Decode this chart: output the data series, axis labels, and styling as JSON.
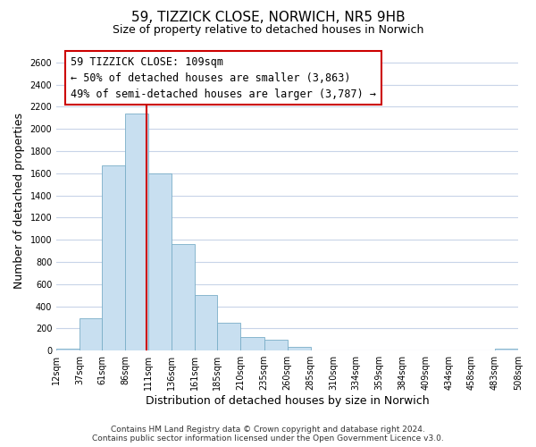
{
  "title": "59, TIZZICK CLOSE, NORWICH, NR5 9HB",
  "subtitle": "Size of property relative to detached houses in Norwich",
  "xlabel": "Distribution of detached houses by size in Norwich",
  "ylabel": "Number of detached properties",
  "bar_color": "#c8dff0",
  "bar_edge_color": "#7aaec8",
  "annotation_line_color": "#cc0000",
  "annotation_box_edge_color": "#cc0000",
  "annotation_text_line1": "59 TIZZICK CLOSE: 109sqm",
  "annotation_text_line2": "← 50% of detached houses are smaller (3,863)",
  "annotation_text_line3": "49% of semi-detached houses are larger (3,787) →",
  "property_sqm": 109,
  "vline_x": 109,
  "bin_edges": [
    12,
    37,
    61,
    86,
    111,
    136,
    161,
    185,
    210,
    235,
    260,
    285,
    310,
    334,
    359,
    384,
    409,
    434,
    458,
    483,
    508
  ],
  "bin_heights": [
    20,
    295,
    1670,
    2140,
    1595,
    965,
    505,
    250,
    120,
    95,
    30,
    5,
    0,
    0,
    0,
    0,
    0,
    0,
    0,
    20
  ],
  "xlim": [
    12,
    508
  ],
  "ylim": [
    0,
    2700
  ],
  "yticks": [
    0,
    200,
    400,
    600,
    800,
    1000,
    1200,
    1400,
    1600,
    1800,
    2000,
    2200,
    2400,
    2600
  ],
  "xtick_labels": [
    "12sqm",
    "37sqm",
    "61sqm",
    "86sqm",
    "111sqm",
    "136sqm",
    "161sqm",
    "185sqm",
    "210sqm",
    "235sqm",
    "260sqm",
    "285sqm",
    "310sqm",
    "334sqm",
    "359sqm",
    "384sqm",
    "409sqm",
    "434sqm",
    "458sqm",
    "483sqm",
    "508sqm"
  ],
  "footer_line1": "Contains HM Land Registry data © Crown copyright and database right 2024.",
  "footer_line2": "Contains public sector information licensed under the Open Government Licence v3.0.",
  "background_color": "#ffffff",
  "grid_color": "#c8d4e8",
  "title_fontsize": 11,
  "subtitle_fontsize": 9,
  "axis_label_fontsize": 9,
  "tick_fontsize": 7,
  "footer_fontsize": 6.5,
  "annotation_fontsize": 8.5
}
